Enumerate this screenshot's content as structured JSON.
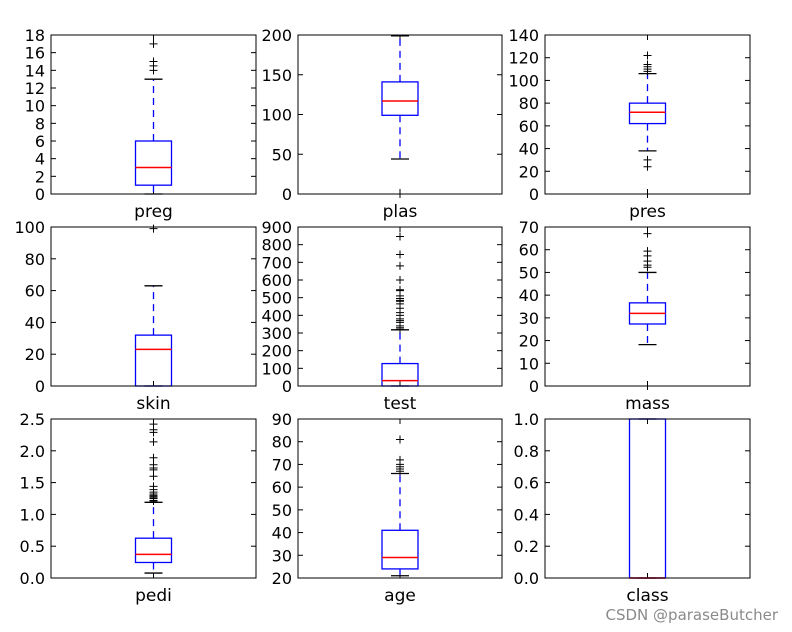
{
  "chart_data": [
    {
      "type": "box",
      "title": "",
      "xlabel": "preg",
      "ylim": [
        0,
        18
      ],
      "yticks": [
        0,
        2,
        4,
        6,
        8,
        10,
        12,
        14,
        16,
        18
      ],
      "box": {
        "whisker_low": 0,
        "q1": 1,
        "median": 3,
        "q3": 6,
        "whisker_high": 13
      },
      "outliers": [
        14,
        14.5,
        15,
        17
      ]
    },
    {
      "type": "box",
      "title": "",
      "xlabel": "plas",
      "ylim": [
        0,
        200
      ],
      "yticks": [
        0,
        50,
        100,
        150,
        200
      ],
      "box": {
        "whisker_low": 44,
        "q1": 99,
        "median": 117,
        "q3": 141,
        "whisker_high": 199
      },
      "outliers": [
        0
      ]
    },
    {
      "type": "box",
      "title": "",
      "xlabel": "pres",
      "ylim": [
        0,
        140
      ],
      "yticks": [
        0,
        20,
        40,
        60,
        80,
        100,
        120,
        140
      ],
      "box": {
        "whisker_low": 38,
        "q1": 62,
        "median": 72,
        "q3": 80,
        "whisker_high": 106
      },
      "outliers": [
        0,
        24,
        30,
        108,
        110,
        112,
        114,
        122
      ]
    },
    {
      "type": "box",
      "title": "",
      "xlabel": "skin",
      "ylim": [
        0,
        100
      ],
      "yticks": [
        0,
        20,
        40,
        60,
        80,
        100
      ],
      "box": {
        "whisker_low": 0,
        "q1": 0,
        "median": 23,
        "q3": 32,
        "whisker_high": 63
      },
      "outliers": [
        99
      ]
    },
    {
      "type": "box",
      "title": "",
      "xlabel": "test",
      "ylim": [
        0,
        900
      ],
      "yticks": [
        0,
        100,
        200,
        300,
        400,
        500,
        600,
        700,
        800,
        900
      ],
      "box": {
        "whisker_low": 0,
        "q1": 0,
        "median": 30.5,
        "q3": 127,
        "whisker_high": 318
      },
      "outliers": [
        321,
        330,
        340,
        360,
        370,
        380,
        400,
        415,
        440,
        465,
        480,
        485,
        495,
        510,
        540,
        545,
        600,
        680,
        744,
        846
      ]
    },
    {
      "type": "box",
      "title": "",
      "xlabel": "mass",
      "ylim": [
        0,
        70
      ],
      "yticks": [
        0,
        10,
        20,
        30,
        40,
        50,
        60,
        70
      ],
      "box": {
        "whisker_low": 18.2,
        "q1": 27.3,
        "median": 32,
        "q3": 36.6,
        "whisker_high": 50
      },
      "outliers": [
        0,
        52.3,
        53.2,
        55,
        57.3,
        59.4,
        67.1
      ]
    },
    {
      "type": "box",
      "title": "",
      "xlabel": "pedi",
      "ylim": [
        0,
        2.5
      ],
      "yticks": [
        0.0,
        0.5,
        1.0,
        1.5,
        2.0,
        2.5
      ],
      "ytick_labels": [
        "0.0",
        "0.5",
        "1.0",
        "1.5",
        "2.0",
        "2.5"
      ],
      "box": {
        "whisker_low": 0.078,
        "q1": 0.244,
        "median": 0.372,
        "q3": 0.626,
        "whisker_high": 1.19
      },
      "outliers": [
        1.21,
        1.22,
        1.25,
        1.26,
        1.28,
        1.3,
        1.32,
        1.35,
        1.39,
        1.44,
        1.6,
        1.7,
        1.73,
        1.78,
        1.89,
        2.14,
        2.29,
        2.33,
        2.42
      ]
    },
    {
      "type": "box",
      "title": "",
      "xlabel": "age",
      "ylim": [
        20,
        90
      ],
      "yticks": [
        20,
        30,
        40,
        50,
        60,
        70,
        80,
        90
      ],
      "box": {
        "whisker_low": 21,
        "q1": 24,
        "median": 29,
        "q3": 41,
        "whisker_high": 66
      },
      "outliers": [
        67,
        68,
        69,
        70,
        72,
        81
      ]
    },
    {
      "type": "box",
      "title": "",
      "xlabel": "class",
      "ylim": [
        0.0,
        1.0
      ],
      "yticks": [
        0.0,
        0.2,
        0.4,
        0.6,
        0.8,
        1.0
      ],
      "ytick_labels": [
        "0.0",
        "0.2",
        "0.4",
        "0.6",
        "0.8",
        "1.0"
      ],
      "box": {
        "whisker_low": 0,
        "q1": 0,
        "median": 0,
        "q3": 1,
        "whisker_high": 1
      },
      "outliers": []
    }
  ],
  "colors": {
    "box": "#0000ff",
    "median": "#ff0000",
    "whisker": "#0000ff",
    "cap": "#000000",
    "flier": "#000000",
    "axes": "#000000"
  },
  "watermark": "CSDN @paraseButcher"
}
